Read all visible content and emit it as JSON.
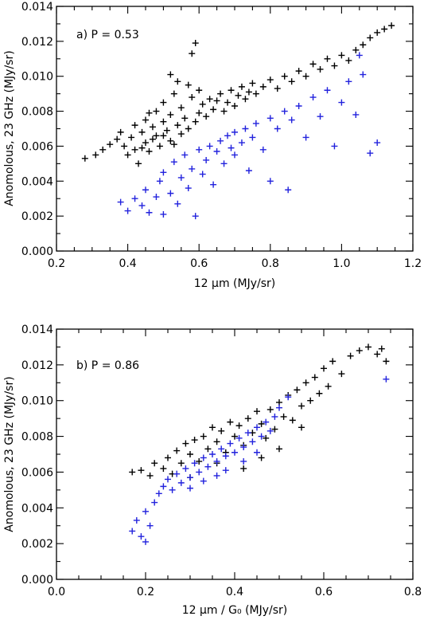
{
  "colors": {
    "series_black": "#000000",
    "series_blue": "#2222dd"
  },
  "chart_data": [
    {
      "type": "scatter",
      "title": "",
      "annotation": "a) P = 0.53",
      "xlabel": "12 μm (MJy/sr)",
      "ylabel": "Anomolous, 23 GHz (MJy/sr)",
      "xlim": [
        0.2,
        1.2
      ],
      "ylim": [
        0.0,
        0.014
      ],
      "xticks": [
        "0.2",
        "0.4",
        "0.6",
        "0.8",
        "1.0",
        "1.2"
      ],
      "yticks": [
        "0.000",
        "0.002",
        "0.004",
        "0.006",
        "0.008",
        "0.010",
        "0.012",
        "0.014"
      ],
      "grid": false,
      "series": [
        {
          "marker": "+",
          "color": "#000000",
          "points": [
            [
              0.28,
              0.0053
            ],
            [
              0.31,
              0.0055
            ],
            [
              0.33,
              0.0058
            ],
            [
              0.35,
              0.0061
            ],
            [
              0.37,
              0.0064
            ],
            [
              0.38,
              0.0068
            ],
            [
              0.39,
              0.006
            ],
            [
              0.4,
              0.0055
            ],
            [
              0.41,
              0.0065
            ],
            [
              0.42,
              0.0072
            ],
            [
              0.42,
              0.0058
            ],
            [
              0.43,
              0.005
            ],
            [
              0.44,
              0.0068
            ],
            [
              0.45,
              0.0075
            ],
            [
              0.45,
              0.0062
            ],
            [
              0.46,
              0.0057
            ],
            [
              0.47,
              0.0071
            ],
            [
              0.48,
              0.0066
            ],
            [
              0.48,
              0.008
            ],
            [
              0.49,
              0.006
            ],
            [
              0.5,
              0.0074
            ],
            [
              0.5,
              0.0085
            ],
            [
              0.51,
              0.0069
            ],
            [
              0.52,
              0.0063
            ],
            [
              0.52,
              0.0078
            ],
            [
              0.53,
              0.009
            ],
            [
              0.54,
              0.0072
            ],
            [
              0.55,
              0.0067
            ],
            [
              0.55,
              0.0082
            ],
            [
              0.56,
              0.0076
            ],
            [
              0.57,
              0.007
            ],
            [
              0.57,
              0.0095
            ],
            [
              0.58,
              0.0088
            ],
            [
              0.59,
              0.0074
            ],
            [
              0.6,
              0.0079
            ],
            [
              0.6,
              0.0092
            ],
            [
              0.61,
              0.0084
            ],
            [
              0.62,
              0.0077
            ],
            [
              0.63,
              0.0087
            ],
            [
              0.64,
              0.0081
            ],
            [
              0.65,
              0.0086
            ],
            [
              0.66,
              0.009
            ],
            [
              0.67,
              0.008
            ],
            [
              0.68,
              0.0085
            ],
            [
              0.69,
              0.0092
            ],
            [
              0.7,
              0.0083
            ],
            [
              0.71,
              0.0089
            ],
            [
              0.72,
              0.0094
            ],
            [
              0.73,
              0.0087
            ],
            [
              0.74,
              0.0091
            ],
            [
              0.75,
              0.0096
            ],
            [
              0.76,
              0.009
            ],
            [
              0.78,
              0.0094
            ],
            [
              0.8,
              0.0098
            ],
            [
              0.82,
              0.0093
            ],
            [
              0.84,
              0.01
            ],
            [
              0.86,
              0.0097
            ],
            [
              0.88,
              0.0103
            ],
            [
              0.9,
              0.01
            ],
            [
              0.92,
              0.0107
            ],
            [
              0.94,
              0.0104
            ],
            [
              0.96,
              0.011
            ],
            [
              0.98,
              0.0106
            ],
            [
              1.0,
              0.0112
            ],
            [
              1.02,
              0.0109
            ],
            [
              1.04,
              0.0115
            ],
            [
              1.06,
              0.0118
            ],
            [
              1.08,
              0.0122
            ],
            [
              1.1,
              0.0125
            ],
            [
              1.12,
              0.0127
            ],
            [
              1.14,
              0.0129
            ],
            [
              0.52,
              0.0101
            ],
            [
              0.54,
              0.0097
            ],
            [
              0.58,
              0.0113
            ],
            [
              0.59,
              0.0119
            ],
            [
              0.5,
              0.0066
            ],
            [
              0.47,
              0.0064
            ],
            [
              0.44,
              0.0059
            ],
            [
              0.46,
              0.0079
            ],
            [
              0.53,
              0.0061
            ]
          ]
        },
        {
          "marker": "+",
          "color": "#2222dd",
          "points": [
            [
              0.38,
              0.0028
            ],
            [
              0.4,
              0.0023
            ],
            [
              0.42,
              0.003
            ],
            [
              0.44,
              0.0026
            ],
            [
              0.45,
              0.0035
            ],
            [
              0.46,
              0.0022
            ],
            [
              0.48,
              0.0031
            ],
            [
              0.49,
              0.004
            ],
            [
              0.5,
              0.0021
            ],
            [
              0.5,
              0.0045
            ],
            [
              0.52,
              0.0033
            ],
            [
              0.53,
              0.0051
            ],
            [
              0.54,
              0.0027
            ],
            [
              0.55,
              0.0042
            ],
            [
              0.56,
              0.0055
            ],
            [
              0.57,
              0.0036
            ],
            [
              0.58,
              0.0047
            ],
            [
              0.59,
              0.002
            ],
            [
              0.6,
              0.0058
            ],
            [
              0.61,
              0.0044
            ],
            [
              0.62,
              0.0052
            ],
            [
              0.63,
              0.006
            ],
            [
              0.64,
              0.0038
            ],
            [
              0.65,
              0.0057
            ],
            [
              0.66,
              0.0063
            ],
            [
              0.67,
              0.005
            ],
            [
              0.68,
              0.0066
            ],
            [
              0.69,
              0.0059
            ],
            [
              0.7,
              0.0055
            ],
            [
              0.7,
              0.0068
            ],
            [
              0.72,
              0.0062
            ],
            [
              0.73,
              0.007
            ],
            [
              0.74,
              0.0046
            ],
            [
              0.75,
              0.0065
            ],
            [
              0.76,
              0.0073
            ],
            [
              0.78,
              0.0058
            ],
            [
              0.8,
              0.0076
            ],
            [
              0.8,
              0.004
            ],
            [
              0.82,
              0.007
            ],
            [
              0.84,
              0.008
            ],
            [
              0.85,
              0.0035
            ],
            [
              0.86,
              0.0075
            ],
            [
              0.88,
              0.0083
            ],
            [
              0.9,
              0.0065
            ],
            [
              0.92,
              0.0088
            ],
            [
              0.94,
              0.0077
            ],
            [
              0.96,
              0.0092
            ],
            [
              0.98,
              0.006
            ],
            [
              1.0,
              0.0085
            ],
            [
              1.02,
              0.0097
            ],
            [
              1.04,
              0.0078
            ],
            [
              1.06,
              0.0101
            ],
            [
              1.08,
              0.0056
            ],
            [
              1.1,
              0.0062
            ],
            [
              1.05,
              0.0112
            ]
          ]
        }
      ]
    },
    {
      "type": "scatter",
      "title": "",
      "annotation": "b) P = 0.86",
      "xlabel": "12 μm / G₀ (MJy/sr)",
      "ylabel": "Anomolous, 23 GHz (MJy/sr)",
      "xlim": [
        0.0,
        0.8
      ],
      "ylim": [
        0.0,
        0.014
      ],
      "xticks": [
        "0.0",
        "0.2",
        "0.4",
        "0.6",
        "0.8"
      ],
      "yticks": [
        "0.000",
        "0.002",
        "0.004",
        "0.006",
        "0.008",
        "0.010",
        "0.012",
        "0.014"
      ],
      "grid": false,
      "series": [
        {
          "marker": "+",
          "color": "#000000",
          "points": [
            [
              0.17,
              0.006
            ],
            [
              0.19,
              0.0061
            ],
            [
              0.21,
              0.0058
            ],
            [
              0.22,
              0.0065
            ],
            [
              0.24,
              0.0062
            ],
            [
              0.25,
              0.0068
            ],
            [
              0.26,
              0.0059
            ],
            [
              0.27,
              0.0072
            ],
            [
              0.28,
              0.0065
            ],
            [
              0.29,
              0.0076
            ],
            [
              0.3,
              0.007
            ],
            [
              0.31,
              0.0078
            ],
            [
              0.32,
              0.0066
            ],
            [
              0.33,
              0.008
            ],
            [
              0.34,
              0.0073
            ],
            [
              0.35,
              0.0085
            ],
            [
              0.36,
              0.0077
            ],
            [
              0.37,
              0.0083
            ],
            [
              0.38,
              0.0071
            ],
            [
              0.39,
              0.0088
            ],
            [
              0.4,
              0.008
            ],
            [
              0.41,
              0.0086
            ],
            [
              0.42,
              0.0075
            ],
            [
              0.43,
              0.009
            ],
            [
              0.44,
              0.0082
            ],
            [
              0.45,
              0.0094
            ],
            [
              0.46,
              0.0087
            ],
            [
              0.47,
              0.0079
            ],
            [
              0.48,
              0.0095
            ],
            [
              0.49,
              0.0084
            ],
            [
              0.5,
              0.0099
            ],
            [
              0.51,
              0.0091
            ],
            [
              0.52,
              0.0103
            ],
            [
              0.53,
              0.0089
            ],
            [
              0.54,
              0.0106
            ],
            [
              0.55,
              0.0097
            ],
            [
              0.56,
              0.011
            ],
            [
              0.57,
              0.01
            ],
            [
              0.58,
              0.0113
            ],
            [
              0.59,
              0.0104
            ],
            [
              0.6,
              0.0118
            ],
            [
              0.61,
              0.0108
            ],
            [
              0.62,
              0.0122
            ],
            [
              0.64,
              0.0115
            ],
            [
              0.66,
              0.0125
            ],
            [
              0.68,
              0.0128
            ],
            [
              0.7,
              0.013
            ],
            [
              0.72,
              0.0126
            ],
            [
              0.74,
              0.0122
            ],
            [
              0.73,
              0.0129
            ],
            [
              0.36,
              0.0065
            ],
            [
              0.42,
              0.0062
            ],
            [
              0.46,
              0.0068
            ],
            [
              0.5,
              0.0073
            ],
            [
              0.3,
              0.0057
            ],
            [
              0.55,
              0.0085
            ]
          ]
        },
        {
          "marker": "+",
          "color": "#2222dd",
          "points": [
            [
              0.17,
              0.0027
            ],
            [
              0.18,
              0.0033
            ],
            [
              0.19,
              0.0024
            ],
            [
              0.2,
              0.0021
            ],
            [
              0.2,
              0.0038
            ],
            [
              0.21,
              0.003
            ],
            [
              0.22,
              0.0043
            ],
            [
              0.23,
              0.0048
            ],
            [
              0.24,
              0.0052
            ],
            [
              0.25,
              0.0056
            ],
            [
              0.26,
              0.005
            ],
            [
              0.27,
              0.0059
            ],
            [
              0.28,
              0.0054
            ],
            [
              0.29,
              0.0062
            ],
            [
              0.3,
              0.0057
            ],
            [
              0.31,
              0.0065
            ],
            [
              0.32,
              0.006
            ],
            [
              0.33,
              0.0068
            ],
            [
              0.34,
              0.0063
            ],
            [
              0.35,
              0.007
            ],
            [
              0.36,
              0.0066
            ],
            [
              0.37,
              0.0073
            ],
            [
              0.38,
              0.0069
            ],
            [
              0.39,
              0.0076
            ],
            [
              0.4,
              0.0071
            ],
            [
              0.41,
              0.0079
            ],
            [
              0.42,
              0.0074
            ],
            [
              0.43,
              0.0082
            ],
            [
              0.44,
              0.0077
            ],
            [
              0.45,
              0.0085
            ],
            [
              0.46,
              0.008
            ],
            [
              0.47,
              0.0088
            ],
            [
              0.48,
              0.0083
            ],
            [
              0.49,
              0.0091
            ],
            [
              0.5,
              0.0096
            ],
            [
              0.52,
              0.0102
            ],
            [
              0.33,
              0.0055
            ],
            [
              0.38,
              0.0061
            ],
            [
              0.42,
              0.0066
            ],
            [
              0.45,
              0.0071
            ],
            [
              0.3,
              0.0051
            ],
            [
              0.36,
              0.0058
            ],
            [
              0.74,
              0.0112
            ]
          ]
        }
      ]
    }
  ]
}
